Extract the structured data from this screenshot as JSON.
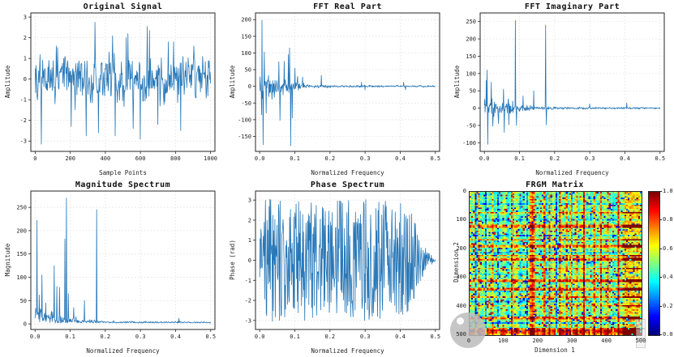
{
  "style": {
    "background": "#ffffff",
    "spine_color": "#262626",
    "grid_color": "#dcdcdc",
    "tick_label_color": "#222222",
    "line_color": "#2878b8",
    "watermark_color": "#bdbdbd"
  },
  "chart_data": [
    {
      "type": "line",
      "title": "Original Signal",
      "xlabel": "Sample Points",
      "ylabel": "Amplitude",
      "xlim": [
        -25,
        1025
      ],
      "ylim": [
        -3.5,
        3.2
      ],
      "xticks": [
        0,
        200,
        400,
        600,
        800,
        1000
      ],
      "xtick_labels": [
        "0",
        "200",
        "400",
        "600",
        "800",
        "1000"
      ],
      "yticks": [
        -3,
        -2,
        -1,
        0,
        1,
        2,
        3
      ],
      "ytick_labels": [
        "-3",
        "-2",
        "-1",
        "0",
        "1",
        "2",
        "3"
      ],
      "line_color": "#2878b8",
      "signal": {
        "n": 400,
        "seed": 7,
        "mode": "gauss",
        "smooth": 0.3,
        "xrange": [
          0,
          1000
        ],
        "envelope": [
          [
            0,
            1.5
          ],
          [
            1000,
            1.5
          ]
        ]
      },
      "spikes": [
        [
          35,
          -3.15
        ],
        [
          120,
          1.6
        ],
        [
          205,
          -2.3
        ],
        [
          290,
          -2.75
        ],
        [
          340,
          2.75
        ],
        [
          360,
          -2.6
        ],
        [
          440,
          2.1
        ],
        [
          455,
          -2.75
        ],
        [
          520,
          2.0
        ],
        [
          530,
          2.2
        ],
        [
          560,
          -2.4
        ],
        [
          598,
          -2.9
        ],
        [
          640,
          2.55
        ],
        [
          652,
          2.35
        ],
        [
          700,
          -2.2
        ],
        [
          760,
          1.8
        ],
        [
          790,
          1.8
        ],
        [
          830,
          -2.5
        ],
        [
          905,
          1.6
        ],
        [
          955,
          1.1
        ]
      ]
    },
    {
      "type": "line",
      "title": "FFT Real Part",
      "xlabel": "Normalized Frequency",
      "ylabel": "Amplitude",
      "xlim": [
        -0.012,
        0.512
      ],
      "ylim": [
        -195,
        220
      ],
      "xticks": [
        0,
        0.1,
        0.2,
        0.3,
        0.4,
        0.5
      ],
      "xtick_labels": [
        "0.0",
        "0.1",
        "0.2",
        "0.3",
        "0.4",
        "0.5"
      ],
      "yticks": [
        -150,
        -100,
        -50,
        0,
        50,
        100,
        150,
        200
      ],
      "ytick_labels": [
        "-150",
        "-100",
        "-50",
        "0",
        "50",
        "100",
        "150",
        "200"
      ],
      "line_color": "#2878b8",
      "signal": {
        "n": 460,
        "seed": 13,
        "mode": "gauss",
        "smooth": 0,
        "xrange": [
          0,
          0.5
        ],
        "envelope": [
          [
            0,
            40
          ],
          [
            0.02,
            35
          ],
          [
            0.06,
            22
          ],
          [
            0.1,
            20
          ],
          [
            0.115,
            10
          ],
          [
            0.15,
            5
          ],
          [
            0.2,
            3.5
          ],
          [
            0.5,
            2.5
          ]
        ]
      },
      "spikes": [
        [
          0.005,
          -85
        ],
        [
          0.007,
          198
        ],
        [
          0.01,
          -175
        ],
        [
          0.013,
          103
        ],
        [
          0.018,
          -80
        ],
        [
          0.055,
          74
        ],
        [
          0.058,
          -102
        ],
        [
          0.07,
          75
        ],
        [
          0.082,
          95
        ],
        [
          0.085,
          115
        ],
        [
          0.088,
          -178
        ],
        [
          0.093,
          -95
        ],
        [
          0.1,
          55
        ],
        [
          0.108,
          30
        ],
        [
          0.122,
          28
        ],
        [
          0.175,
          33
        ],
        [
          0.29,
          12
        ],
        [
          0.3,
          -10
        ],
        [
          0.41,
          12
        ],
        [
          0.415,
          -10
        ]
      ]
    },
    {
      "type": "line",
      "title": "FFT Imaginary Part",
      "xlabel": "Normalized Frequency",
      "ylabel": "Amplitude",
      "xlim": [
        -0.012,
        0.512
      ],
      "ylim": [
        -125,
        275
      ],
      "xticks": [
        0,
        0.1,
        0.2,
        0.3,
        0.4,
        0.5
      ],
      "xtick_labels": [
        "0.0",
        "0.1",
        "0.2",
        "0.3",
        "0.4",
        "0.5"
      ],
      "yticks": [
        -100,
        -50,
        0,
        50,
        100,
        150,
        200,
        250
      ],
      "ytick_labels": [
        "-100",
        "-50",
        "0",
        "50",
        "100",
        "150",
        "200",
        "250"
      ],
      "line_color": "#2878b8",
      "signal": {
        "n": 460,
        "seed": 29,
        "mode": "gauss",
        "smooth": 0,
        "xrange": [
          0,
          0.5
        ],
        "envelope": [
          [
            0,
            30
          ],
          [
            0.02,
            28
          ],
          [
            0.06,
            22
          ],
          [
            0.1,
            15
          ],
          [
            0.13,
            7
          ],
          [
            0.2,
            3.5
          ],
          [
            0.5,
            2
          ]
        ]
      },
      "spikes": [
        [
          0.005,
          80
        ],
        [
          0.008,
          110
        ],
        [
          0.01,
          -105
        ],
        [
          0.02,
          75
        ],
        [
          0.024,
          -52
        ],
        [
          0.04,
          -45
        ],
        [
          0.054,
          55
        ],
        [
          0.057,
          -70
        ],
        [
          0.07,
          -48
        ],
        [
          0.088,
          253
        ],
        [
          0.092,
          -50
        ],
        [
          0.11,
          35
        ],
        [
          0.14,
          50
        ],
        [
          0.174,
          240
        ],
        [
          0.177,
          -48
        ],
        [
          0.3,
          12
        ],
        [
          0.405,
          15
        ]
      ]
    },
    {
      "type": "line",
      "title": "Magnitude Spectrum",
      "xlabel": "Normalized Frequency",
      "ylabel": "Magnitude",
      "xlim": [
        -0.012,
        0.512
      ],
      "ylim": [
        -12,
        285
      ],
      "xticks": [
        0,
        0.1,
        0.2,
        0.3,
        0.4,
        0.5
      ],
      "xtick_labels": [
        "0.0",
        "0.1",
        "0.2",
        "0.3",
        "0.4",
        "0.5"
      ],
      "yticks": [
        0,
        50,
        100,
        150,
        200,
        250
      ],
      "ytick_labels": [
        "0",
        "50",
        "100",
        "150",
        "200",
        "250"
      ],
      "line_color": "#2878b8",
      "signal": {
        "n": 460,
        "seed": 41,
        "mode": "abs",
        "smooth": 0.2,
        "floor": 2,
        "xrange": [
          0,
          0.5
        ],
        "envelope": [
          [
            0,
            60
          ],
          [
            0.02,
            32
          ],
          [
            0.05,
            30
          ],
          [
            0.1,
            18
          ],
          [
            0.13,
            9
          ],
          [
            0.2,
            5
          ],
          [
            0.5,
            2.5
          ]
        ]
      },
      "spikes": [
        [
          0.005,
          222
        ],
        [
          0.012,
          62
        ],
        [
          0.02,
          105
        ],
        [
          0.03,
          45
        ],
        [
          0.055,
          125
        ],
        [
          0.062,
          80
        ],
        [
          0.07,
          78
        ],
        [
          0.085,
          182
        ],
        [
          0.089,
          270
        ],
        [
          0.095,
          65
        ],
        [
          0.11,
          35
        ],
        [
          0.14,
          50
        ],
        [
          0.175,
          245
        ],
        [
          0.41,
          12
        ]
      ]
    },
    {
      "type": "line",
      "title": "Phase Spectrum",
      "xlabel": "Normalized Frequency",
      "ylabel": "Phase (rad)",
      "xlim": [
        -0.012,
        0.512
      ],
      "ylim": [
        -3.45,
        3.45
      ],
      "xticks": [
        0,
        0.1,
        0.2,
        0.3,
        0.4,
        0.5
      ],
      "xtick_labels": [
        "0.0",
        "0.1",
        "0.2",
        "0.3",
        "0.4",
        "0.5"
      ],
      "yticks": [
        -3,
        -2,
        -1,
        0,
        1,
        2,
        3
      ],
      "ytick_labels": [
        "-3",
        "-2",
        "-1",
        "0",
        "1",
        "2",
        "3"
      ],
      "line_color": "#2878b8",
      "signal": {
        "n": 430,
        "seed": 57,
        "mode": "uniform",
        "smooth": 0,
        "xrange": [
          0,
          0.5
        ],
        "envelope": [
          [
            0,
            3.1
          ],
          [
            0.4,
            3.0
          ],
          [
            0.435,
            2.3
          ],
          [
            0.46,
            1.0
          ],
          [
            0.48,
            0.4
          ],
          [
            0.5,
            0.05
          ]
        ]
      },
      "spikes": []
    },
    {
      "type": "heatmap",
      "title": "FRGM Matrix",
      "xlabel": "Dimension 1",
      "ylabel": "Dimension 2",
      "xticks": [
        0,
        100,
        200,
        300,
        400,
        500
      ],
      "xtick_labels": [
        "0",
        "100",
        "200",
        "300",
        "400",
        "500"
      ],
      "yticks": [
        0,
        100,
        200,
        300,
        400,
        500
      ],
      "ytick_labels": [
        "0",
        "100",
        "200",
        "300",
        "400",
        "500"
      ],
      "y_inverted": true,
      "colormap": "jet",
      "vmin": 0,
      "vmax": 1,
      "colorbar_ticks": [
        "1.0",
        "0.8",
        "0.6",
        "0.4",
        "0.2",
        "0.0"
      ],
      "grid": {
        "size": 100,
        "seed": 99,
        "base": 0.5,
        "noise": 0.11,
        "hot_cols": [
          [
            5,
            0.18
          ],
          [
            13,
            0.2
          ],
          [
            24,
            0.28
          ],
          [
            35,
            0.3
          ],
          [
            36,
            0.32
          ],
          [
            37,
            0.26
          ],
          [
            43,
            0.2
          ],
          [
            46,
            0.24
          ],
          [
            52,
            0.2
          ],
          [
            56,
            0.26
          ],
          [
            58,
            0.2
          ],
          [
            62,
            0.18
          ],
          [
            66,
            0.3
          ],
          [
            72,
            0.26
          ],
          [
            76,
            0.2
          ],
          [
            80,
            0.2
          ],
          [
            86,
            0.26
          ]
        ],
        "cold_cols": [
          [
            3,
            -0.22
          ],
          [
            9,
            -0.18
          ],
          [
            16,
            -0.28
          ],
          [
            22,
            -0.18
          ],
          [
            29,
            -0.2
          ],
          [
            33,
            -0.3
          ],
          [
            44,
            -0.16
          ],
          [
            50,
            -0.2
          ],
          [
            59,
            -0.2
          ],
          [
            70,
            -0.18
          ],
          [
            83,
            -0.16
          ]
        ],
        "hot_rows": [
          [
            14,
            0.18
          ],
          [
            23,
            0.24
          ],
          [
            24,
            0.3
          ],
          [
            33,
            0.2
          ],
          [
            37,
            0.3
          ],
          [
            38,
            0.26
          ],
          [
            44,
            0.2
          ],
          [
            46,
            0.26
          ],
          [
            47,
            0.3
          ],
          [
            53,
            0.18
          ],
          [
            61,
            0.26
          ],
          [
            62,
            0.3
          ],
          [
            67,
            0.26
          ],
          [
            68,
            0.3
          ],
          [
            73,
            0.24
          ],
          [
            79,
            0.2
          ],
          [
            87,
            0.3
          ],
          [
            88,
            0.26
          ],
          [
            95,
            0.3
          ],
          [
            96,
            0.34
          ],
          [
            97,
            0.36
          ],
          [
            98,
            0.34
          ],
          [
            99,
            0.3
          ]
        ],
        "cold_rows": [
          [
            8,
            -0.15
          ],
          [
            19,
            -0.18
          ],
          [
            30,
            -0.15
          ],
          [
            42,
            -0.15
          ],
          [
            57,
            -0.15
          ],
          [
            76,
            -0.15
          ],
          [
            91,
            -0.15
          ]
        ],
        "right_block": {
          "col_start": 89,
          "boost": 0.22
        },
        "speckle": {
          "prob_high": 0.04,
          "high": 0.92,
          "prob_low": 0.05,
          "low": 0.1
        }
      }
    }
  ],
  "watermark": {
    "shape": "grey-circle-with-dot",
    "color": "#bdbdbd"
  }
}
